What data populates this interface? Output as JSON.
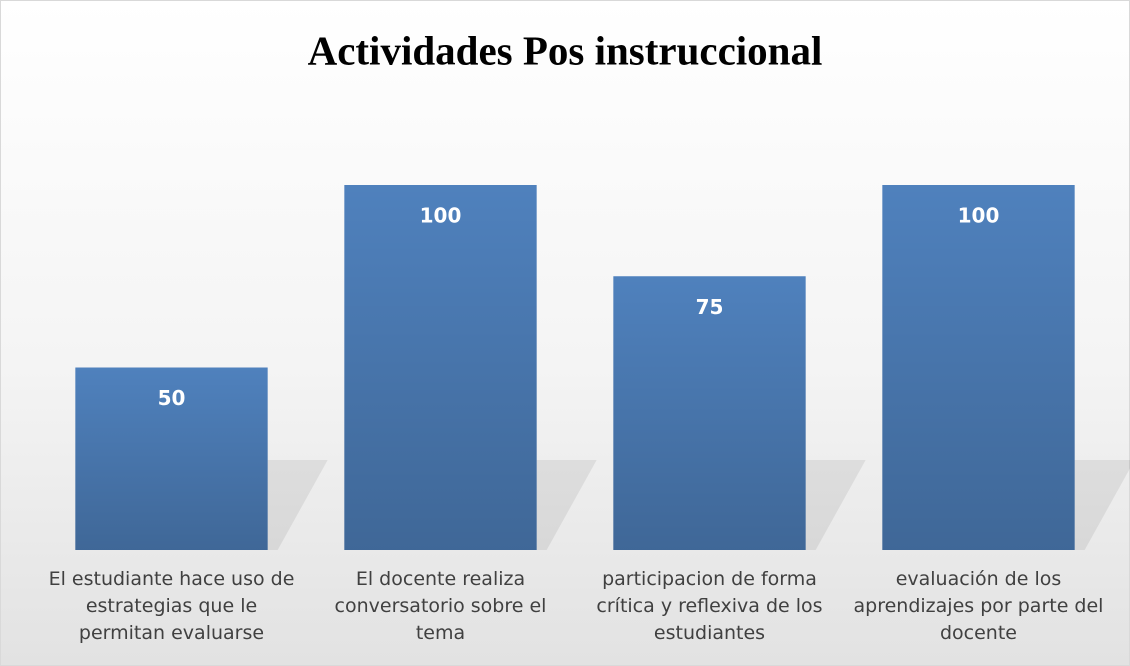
{
  "chart_data": {
    "type": "bar",
    "title": "Actividades Pos instruccional",
    "categories": [
      "El estudiante hace uso de estrategias que le permitan evaluarse",
      "El docente realiza conversatorio sobre el tema",
      "participacion de forma crítica y reflexiva de los estudiantes",
      "evaluación de los aprendizajes por parte del docente"
    ],
    "values": [
      50,
      100,
      75,
      100
    ],
    "color": "#4f81bd",
    "ylim": [
      0,
      100
    ],
    "grid": false
  }
}
